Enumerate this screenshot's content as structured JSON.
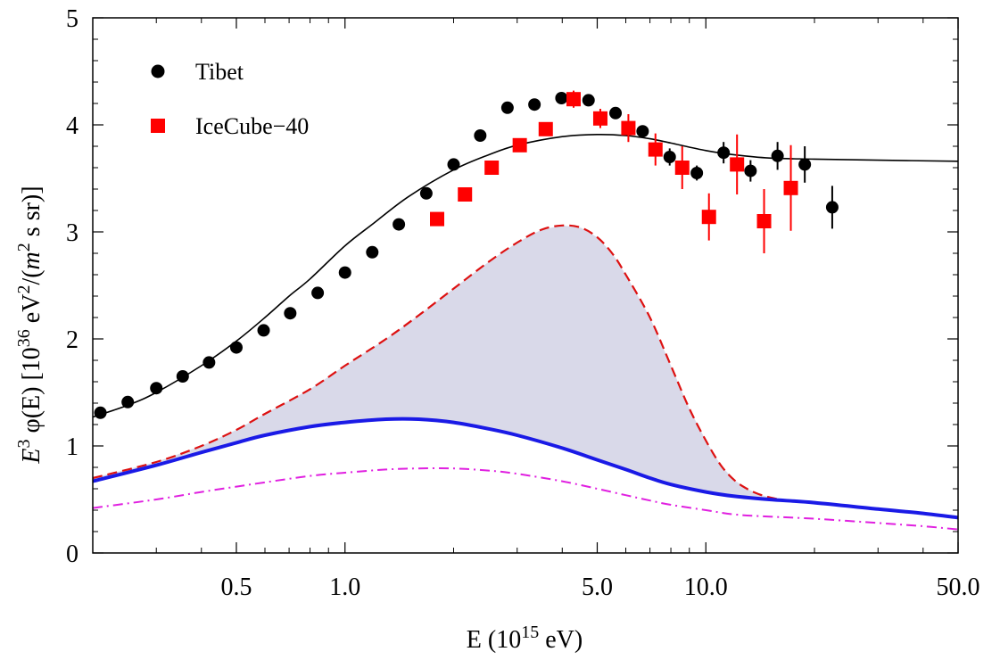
{
  "chart_data": {
    "type": "scatter",
    "title": "",
    "xlabel": {
      "base": "E (10",
      "sup": "15",
      "tail": " eV)"
    },
    "ylabel": {
      "E": "E",
      "E_sup": "3",
      "phi": " φ(E)  [10",
      "exp": "36",
      "unit": " eV",
      "unit_sup": "2",
      "mid": "/(",
      "m": "m",
      "m_sup": "2",
      "end": " s sr)]"
    },
    "xscale": "log",
    "xlim": [
      0.2,
      50
    ],
    "ylim": [
      0,
      5
    ],
    "grid": false,
    "legend_position": "top-left",
    "x_ticks": [
      {
        "value": 0.5,
        "label": "0.5"
      },
      {
        "value": 1.0,
        "label": "1.0"
      },
      {
        "value": 5.0,
        "label": "5.0"
      },
      {
        "value": 10.0,
        "label": "10.0"
      },
      {
        "value": 50.0,
        "label": "50.0"
      }
    ],
    "x_minor_ticks": [
      0.2,
      0.3,
      0.4,
      0.6,
      0.7,
      0.8,
      0.9,
      2,
      3,
      4,
      6,
      7,
      8,
      9,
      20,
      30,
      40
    ],
    "y_ticks": [
      {
        "value": 0,
        "label": "0"
      },
      {
        "value": 1,
        "label": "1"
      },
      {
        "value": 2,
        "label": "2"
      },
      {
        "value": 3,
        "label": "3"
      },
      {
        "value": 4,
        "label": "4"
      },
      {
        "value": 5,
        "label": "5"
      }
    ],
    "y_minor_step": 0.2,
    "series": [
      {
        "name": "Tibet",
        "kind": "points",
        "marker": "circle",
        "color": "#000000",
        "points": [
          {
            "x": 0.21,
            "y": 1.31
          },
          {
            "x": 0.25,
            "y": 1.41
          },
          {
            "x": 0.3,
            "y": 1.54
          },
          {
            "x": 0.355,
            "y": 1.65
          },
          {
            "x": 0.42,
            "y": 1.78
          },
          {
            "x": 0.5,
            "y": 1.92
          },
          {
            "x": 0.595,
            "y": 2.08
          },
          {
            "x": 0.705,
            "y": 2.24
          },
          {
            "x": 0.84,
            "y": 2.43
          },
          {
            "x": 1.0,
            "y": 2.62
          },
          {
            "x": 1.19,
            "y": 2.81
          },
          {
            "x": 1.41,
            "y": 3.07
          },
          {
            "x": 1.68,
            "y": 3.36
          },
          {
            "x": 2.0,
            "y": 3.63
          },
          {
            "x": 2.37,
            "y": 3.9
          },
          {
            "x": 2.82,
            "y": 4.16
          },
          {
            "x": 3.35,
            "y": 4.19
          },
          {
            "x": 3.98,
            "y": 4.25
          },
          {
            "x": 4.73,
            "y": 4.23
          },
          {
            "x": 5.62,
            "y": 4.11
          },
          {
            "x": 6.68,
            "y": 3.94
          },
          {
            "x": 7.94,
            "y": 3.7,
            "err": 0.08
          },
          {
            "x": 9.44,
            "y": 3.55,
            "err": 0.07
          },
          {
            "x": 11.2,
            "y": 3.74,
            "err": 0.1
          },
          {
            "x": 13.3,
            "y": 3.57,
            "err": 0.1
          },
          {
            "x": 15.8,
            "y": 3.71,
            "err": 0.13
          },
          {
            "x": 18.8,
            "y": 3.63,
            "err": 0.17
          },
          {
            "x": 22.4,
            "y": 3.23,
            "err": 0.2
          }
        ]
      },
      {
        "name": "IceCube−40",
        "kind": "points",
        "marker": "square",
        "color": "#ff0000",
        "points": [
          {
            "x": 1.8,
            "y": 3.12
          },
          {
            "x": 2.15,
            "y": 3.35
          },
          {
            "x": 2.55,
            "y": 3.6
          },
          {
            "x": 3.05,
            "y": 3.81
          },
          {
            "x": 3.6,
            "y": 3.96,
            "err": 0.05
          },
          {
            "x": 4.3,
            "y": 4.24,
            "err": 0.08
          },
          {
            "x": 5.1,
            "y": 4.06,
            "err": 0.09
          },
          {
            "x": 6.1,
            "y": 3.97,
            "err": 0.13
          },
          {
            "x": 7.25,
            "y": 3.77,
            "err": 0.15
          },
          {
            "x": 8.6,
            "y": 3.6,
            "err": 0.2
          },
          {
            "x": 10.2,
            "y": 3.14,
            "err": 0.22
          },
          {
            "x": 12.2,
            "y": 3.63,
            "err": 0.28
          },
          {
            "x": 14.5,
            "y": 3.1,
            "err": 0.3
          },
          {
            "x": 17.2,
            "y": 3.41,
            "err": 0.4
          }
        ]
      },
      {
        "name": "",
        "kind": "line",
        "style": "thin-solid",
        "color": "#000000",
        "points": [
          {
            "x": 0.2,
            "y": 1.27
          },
          {
            "x": 0.25,
            "y": 1.38
          },
          {
            "x": 0.3,
            "y": 1.5
          },
          {
            "x": 0.4,
            "y": 1.75
          },
          {
            "x": 0.5,
            "y": 1.98
          },
          {
            "x": 0.6,
            "y": 2.2
          },
          {
            "x": 0.7,
            "y": 2.4
          },
          {
            "x": 0.8,
            "y": 2.56
          },
          {
            "x": 1.0,
            "y": 2.87
          },
          {
            "x": 1.2,
            "y": 3.08
          },
          {
            "x": 1.5,
            "y": 3.33
          },
          {
            "x": 2.0,
            "y": 3.58
          },
          {
            "x": 2.5,
            "y": 3.72
          },
          {
            "x": 3.0,
            "y": 3.81
          },
          {
            "x": 4.0,
            "y": 3.89
          },
          {
            "x": 5.0,
            "y": 3.91
          },
          {
            "x": 6.0,
            "y": 3.9
          },
          {
            "x": 7.0,
            "y": 3.87
          },
          {
            "x": 8.0,
            "y": 3.83
          },
          {
            "x": 10.0,
            "y": 3.76
          },
          {
            "x": 12.0,
            "y": 3.72
          },
          {
            "x": 15.0,
            "y": 3.69
          },
          {
            "x": 20.0,
            "y": 3.68
          },
          {
            "x": 30.0,
            "y": 3.67
          },
          {
            "x": 50.0,
            "y": 3.66
          }
        ]
      },
      {
        "name": "",
        "kind": "line",
        "style": "dashed",
        "color": "#dd1111",
        "points": [
          {
            "x": 0.2,
            "y": 0.7
          },
          {
            "x": 0.3,
            "y": 0.85
          },
          {
            "x": 0.4,
            "y": 1.0
          },
          {
            "x": 0.5,
            "y": 1.15
          },
          {
            "x": 0.6,
            "y": 1.3
          },
          {
            "x": 0.8,
            "y": 1.53
          },
          {
            "x": 1.0,
            "y": 1.75
          },
          {
            "x": 1.3,
            "y": 2.0
          },
          {
            "x": 1.6,
            "y": 2.22
          },
          {
            "x": 2.0,
            "y": 2.47
          },
          {
            "x": 2.5,
            "y": 2.72
          },
          {
            "x": 3.0,
            "y": 2.9
          },
          {
            "x": 3.5,
            "y": 3.02
          },
          {
            "x": 4.0,
            "y": 3.06
          },
          {
            "x": 4.5,
            "y": 3.04
          },
          {
            "x": 5.0,
            "y": 2.95
          },
          {
            "x": 5.5,
            "y": 2.8
          },
          {
            "x": 6.0,
            "y": 2.6
          },
          {
            "x": 7.0,
            "y": 2.2
          },
          {
            "x": 8.0,
            "y": 1.75
          },
          {
            "x": 9.0,
            "y": 1.35
          },
          {
            "x": 10.0,
            "y": 1.05
          },
          {
            "x": 11.0,
            "y": 0.82
          },
          {
            "x": 12.0,
            "y": 0.68
          },
          {
            "x": 13.0,
            "y": 0.6
          },
          {
            "x": 14.0,
            "y": 0.55
          },
          {
            "x": 15.0,
            "y": 0.52
          },
          {
            "x": 16.0,
            "y": 0.5
          }
        ]
      },
      {
        "name": "",
        "kind": "line",
        "style": "thick-solid",
        "color": "#1a1ae6",
        "points": [
          {
            "x": 0.2,
            "y": 0.67
          },
          {
            "x": 0.3,
            "y": 0.82
          },
          {
            "x": 0.4,
            "y": 0.94
          },
          {
            "x": 0.5,
            "y": 1.03
          },
          {
            "x": 0.6,
            "y": 1.1
          },
          {
            "x": 0.8,
            "y": 1.18
          },
          {
            "x": 1.0,
            "y": 1.22
          },
          {
            "x": 1.3,
            "y": 1.25
          },
          {
            "x": 1.6,
            "y": 1.25
          },
          {
            "x": 2.0,
            "y": 1.22
          },
          {
            "x": 2.5,
            "y": 1.16
          },
          {
            "x": 3.0,
            "y": 1.1
          },
          {
            "x": 4.0,
            "y": 0.98
          },
          {
            "x": 5.0,
            "y": 0.87
          },
          {
            "x": 6.0,
            "y": 0.78
          },
          {
            "x": 7.0,
            "y": 0.7
          },
          {
            "x": 8.0,
            "y": 0.64
          },
          {
            "x": 10.0,
            "y": 0.57
          },
          {
            "x": 12.0,
            "y": 0.53
          },
          {
            "x": 15.0,
            "y": 0.5
          },
          {
            "x": 20.0,
            "y": 0.47
          },
          {
            "x": 30.0,
            "y": 0.41
          },
          {
            "x": 40.0,
            "y": 0.37
          },
          {
            "x": 50.0,
            "y": 0.33
          }
        ]
      },
      {
        "name": "",
        "kind": "line",
        "style": "dash-dot",
        "color": "#e020e0",
        "points": [
          {
            "x": 0.2,
            "y": 0.42
          },
          {
            "x": 0.3,
            "y": 0.5
          },
          {
            "x": 0.4,
            "y": 0.57
          },
          {
            "x": 0.5,
            "y": 0.62
          },
          {
            "x": 0.6,
            "y": 0.66
          },
          {
            "x": 0.8,
            "y": 0.72
          },
          {
            "x": 1.0,
            "y": 0.75
          },
          {
            "x": 1.3,
            "y": 0.78
          },
          {
            "x": 1.6,
            "y": 0.79
          },
          {
            "x": 2.0,
            "y": 0.79
          },
          {
            "x": 2.5,
            "y": 0.77
          },
          {
            "x": 3.0,
            "y": 0.74
          },
          {
            "x": 4.0,
            "y": 0.67
          },
          {
            "x": 5.0,
            "y": 0.6
          },
          {
            "x": 6.0,
            "y": 0.54
          },
          {
            "x": 7.0,
            "y": 0.49
          },
          {
            "x": 8.0,
            "y": 0.45
          },
          {
            "x": 10.0,
            "y": 0.4
          },
          {
            "x": 12.0,
            "y": 0.36
          },
          {
            "x": 15.0,
            "y": 0.34
          },
          {
            "x": 20.0,
            "y": 0.32
          },
          {
            "x": 30.0,
            "y": 0.28
          },
          {
            "x": 40.0,
            "y": 0.25
          },
          {
            "x": 50.0,
            "y": 0.22
          }
        ]
      }
    ],
    "shaded_band": {
      "upper": "dashed",
      "lower": "thick-solid",
      "color": "#d9d9e9"
    }
  }
}
